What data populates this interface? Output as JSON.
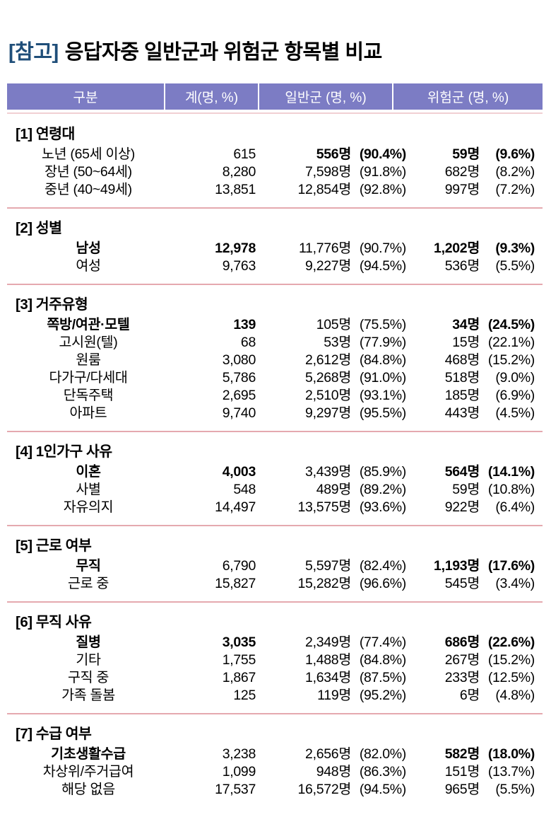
{
  "title": {
    "tag": "[참고]",
    "text": "응답자중 일반군과 위험군 항목별 비교"
  },
  "colors": {
    "header_bg": "#7c7cc4",
    "header_text": "#ffffff",
    "title_tag": "#1f4e79",
    "divider": "#e5a9af"
  },
  "table": {
    "columns": [
      "구분",
      "계(명, %)",
      "일반군 (명, %)",
      "위험군 (명, %)"
    ],
    "sections": [
      {
        "id": "[1]",
        "name": "연령대",
        "rows": [
          {
            "label": "노년 (65세 이상)",
            "total": "615",
            "g_count": "556명",
            "g_pct": "(90.4%)",
            "r_count": "59명",
            "r_pct": "(9.6%)",
            "bold": [
              "general",
              "risk"
            ]
          },
          {
            "label": "장년 (50~64세)",
            "total": "8,280",
            "g_count": "7,598명",
            "g_pct": "(91.8%)",
            "r_count": "682명",
            "r_pct": "(8.2%)",
            "bold": []
          },
          {
            "label": "중년 (40~49세)",
            "total": "13,851",
            "g_count": "12,854명",
            "g_pct": "(92.8%)",
            "r_count": "997명",
            "r_pct": "(7.2%)",
            "bold": []
          }
        ]
      },
      {
        "id": "[2]",
        "name": "성별",
        "rows": [
          {
            "label": "남성",
            "total": "12,978",
            "g_count": "11,776명",
            "g_pct": "(90.7%)",
            "r_count": "1,202명",
            "r_pct": "(9.3%)",
            "bold": [
              "label",
              "total",
              "risk"
            ]
          },
          {
            "label": "여성",
            "total": "9,763",
            "g_count": "9,227명",
            "g_pct": "(94.5%)",
            "r_count": "536명",
            "r_pct": "(5.5%)",
            "bold": []
          }
        ]
      },
      {
        "id": "[3]",
        "name": "거주유형",
        "rows": [
          {
            "label": "쪽방/여관·모텔",
            "total": "139",
            "g_count": "105명",
            "g_pct": "(75.5%)",
            "r_count": "34명",
            "r_pct": "(24.5%)",
            "bold": [
              "label",
              "total",
              "risk"
            ]
          },
          {
            "label": "고시원(텔)",
            "total": "68",
            "g_count": "53명",
            "g_pct": "(77.9%)",
            "r_count": "15명",
            "r_pct": "(22.1%)",
            "bold": []
          },
          {
            "label": "원룸",
            "total": "3,080",
            "g_count": "2,612명",
            "g_pct": "(84.8%)",
            "r_count": "468명",
            "r_pct": "(15.2%)",
            "bold": []
          },
          {
            "label": "다가구/다세대",
            "total": "5,786",
            "g_count": "5,268명",
            "g_pct": "(91.0%)",
            "r_count": "518명",
            "r_pct": "(9.0%)",
            "bold": []
          },
          {
            "label": "단독주택",
            "total": "2,695",
            "g_count": "2,510명",
            "g_pct": "(93.1%)",
            "r_count": "185명",
            "r_pct": "(6.9%)",
            "bold": []
          },
          {
            "label": "아파트",
            "total": "9,740",
            "g_count": "9,297명",
            "g_pct": "(95.5%)",
            "r_count": "443명",
            "r_pct": "(4.5%)",
            "bold": []
          }
        ]
      },
      {
        "id": "[4]",
        "name": "1인가구 사유",
        "rows": [
          {
            "label": "이혼",
            "total": "4,003",
            "g_count": "3,439명",
            "g_pct": "(85.9%)",
            "r_count": "564명",
            "r_pct": "(14.1%)",
            "bold": [
              "label",
              "total",
              "risk"
            ]
          },
          {
            "label": "사별",
            "total": "548",
            "g_count": "489명",
            "g_pct": "(89.2%)",
            "r_count": "59명",
            "r_pct": "(10.8%)",
            "bold": []
          },
          {
            "label": "자유의지",
            "total": "14,497",
            "g_count": "13,575명",
            "g_pct": "(93.6%)",
            "r_count": "922명",
            "r_pct": "(6.4%)",
            "bold": []
          }
        ]
      },
      {
        "id": "[5]",
        "name": "근로 여부",
        "rows": [
          {
            "label": "무직",
            "total": "6,790",
            "g_count": "5,597명",
            "g_pct": "(82.4%)",
            "r_count": "1,193명",
            "r_pct": "(17.6%)",
            "bold": [
              "label",
              "risk"
            ]
          },
          {
            "label": "근로 중",
            "total": "15,827",
            "g_count": "15,282명",
            "g_pct": "(96.6%)",
            "r_count": "545명",
            "r_pct": "(3.4%)",
            "bold": []
          }
        ]
      },
      {
        "id": "[6]",
        "name": "무직 사유",
        "rows": [
          {
            "label": "질병",
            "total": "3,035",
            "g_count": "2,349명",
            "g_pct": "(77.4%)",
            "r_count": "686명",
            "r_pct": "(22.6%)",
            "bold": [
              "label",
              "total",
              "risk"
            ]
          },
          {
            "label": "기타",
            "total": "1,755",
            "g_count": "1,488명",
            "g_pct": "(84.8%)",
            "r_count": "267명",
            "r_pct": "(15.2%)",
            "bold": []
          },
          {
            "label": "구직 중",
            "total": "1,867",
            "g_count": "1,634명",
            "g_pct": "(87.5%)",
            "r_count": "233명",
            "r_pct": "(12.5%)",
            "bold": []
          },
          {
            "label": "가족 돌봄",
            "total": "125",
            "g_count": "119명",
            "g_pct": "(95.2%)",
            "r_count": "6명",
            "r_pct": "(4.8%)",
            "bold": []
          }
        ]
      },
      {
        "id": "[7]",
        "name": "수급 여부",
        "rows": [
          {
            "label": "기초생활수급",
            "total": "3,238",
            "g_count": "2,656명",
            "g_pct": "(82.0%)",
            "r_count": "582명",
            "r_pct": "(18.0%)",
            "bold": [
              "label",
              "risk"
            ]
          },
          {
            "label": "차상위/주거급여",
            "total": "1,099",
            "g_count": "948명",
            "g_pct": "(86.3%)",
            "r_count": "151명",
            "r_pct": "(13.7%)",
            "bold": []
          },
          {
            "label": "해당 없음",
            "total": "17,537",
            "g_count": "16,572명",
            "g_pct": "(94.5%)",
            "r_count": "965명",
            "r_pct": "(5.5%)",
            "bold": []
          }
        ]
      }
    ]
  }
}
